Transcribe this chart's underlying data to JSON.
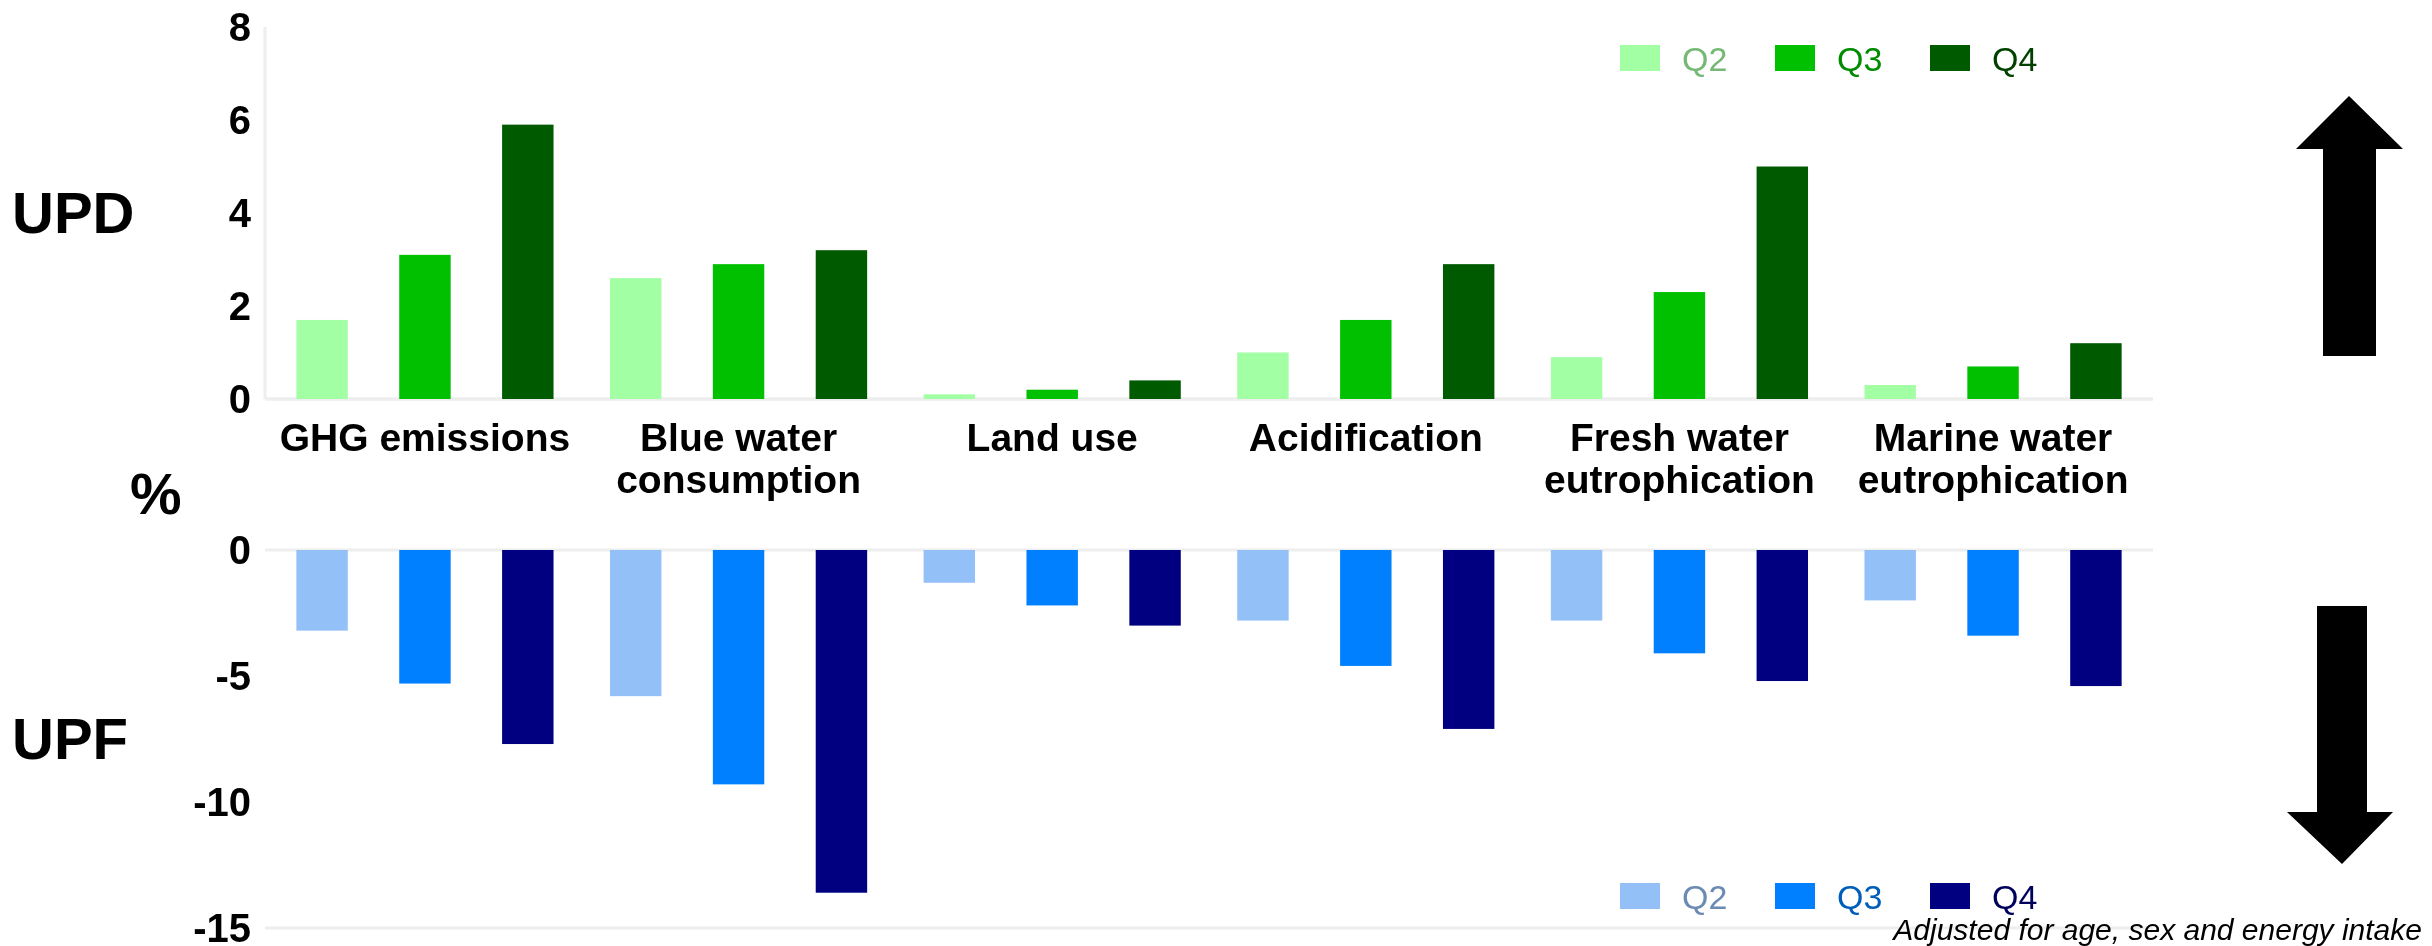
{
  "chart_data": [
    {
      "type": "bar",
      "ylabel": "UPD",
      "categories": [
        "GHG emissions",
        "Blue water consumption",
        "Land use",
        "Acidification",
        "Fresh water eutrophication",
        "Marine water eutrophication"
      ],
      "series": [
        {
          "name": "Q2",
          "color": "#a3ffa3",
          "values": [
            1.7,
            2.6,
            0.1,
            1.0,
            0.9,
            0.3
          ]
        },
        {
          "name": "Q3",
          "color": "#00c000",
          "values": [
            3.1,
            2.9,
            0.2,
            1.7,
            2.3,
            0.7
          ]
        },
        {
          "name": "Q4",
          "color": "#005a00",
          "values": [
            5.9,
            3.2,
            0.4,
            2.9,
            5.0,
            1.2
          ]
        }
      ],
      "ylim": [
        0,
        8
      ],
      "yticks": [
        0,
        2,
        4,
        6,
        8
      ],
      "legend": "top right",
      "annotations": [
        "%"
      ]
    },
    {
      "type": "bar",
      "ylabel": "UPF",
      "categories": [
        null,
        null,
        null,
        null,
        null,
        null
      ],
      "series": [
        {
          "name": "Q2",
          "color": "#94c0f8",
          "values": [
            -3.2,
            -5.8,
            -1.3,
            -2.8,
            -2.8,
            -2.0
          ]
        },
        {
          "name": "Q3",
          "color": "#0080ff",
          "values": [
            -5.3,
            -9.3,
            -2.2,
            -4.6,
            -4.1,
            -3.4
          ]
        },
        {
          "name": "Q4",
          "color": "#000080",
          "values": [
            -7.7,
            -13.6,
            -3.0,
            -7.1,
            -5.2,
            -5.4
          ]
        }
      ],
      "ylim": [
        -15,
        0
      ],
      "yticks": [
        -15,
        -10,
        -5,
        0
      ],
      "legend": "bottom right",
      "annotations": [
        "Adjusted for age, sex and energy intake"
      ]
    }
  ]
}
